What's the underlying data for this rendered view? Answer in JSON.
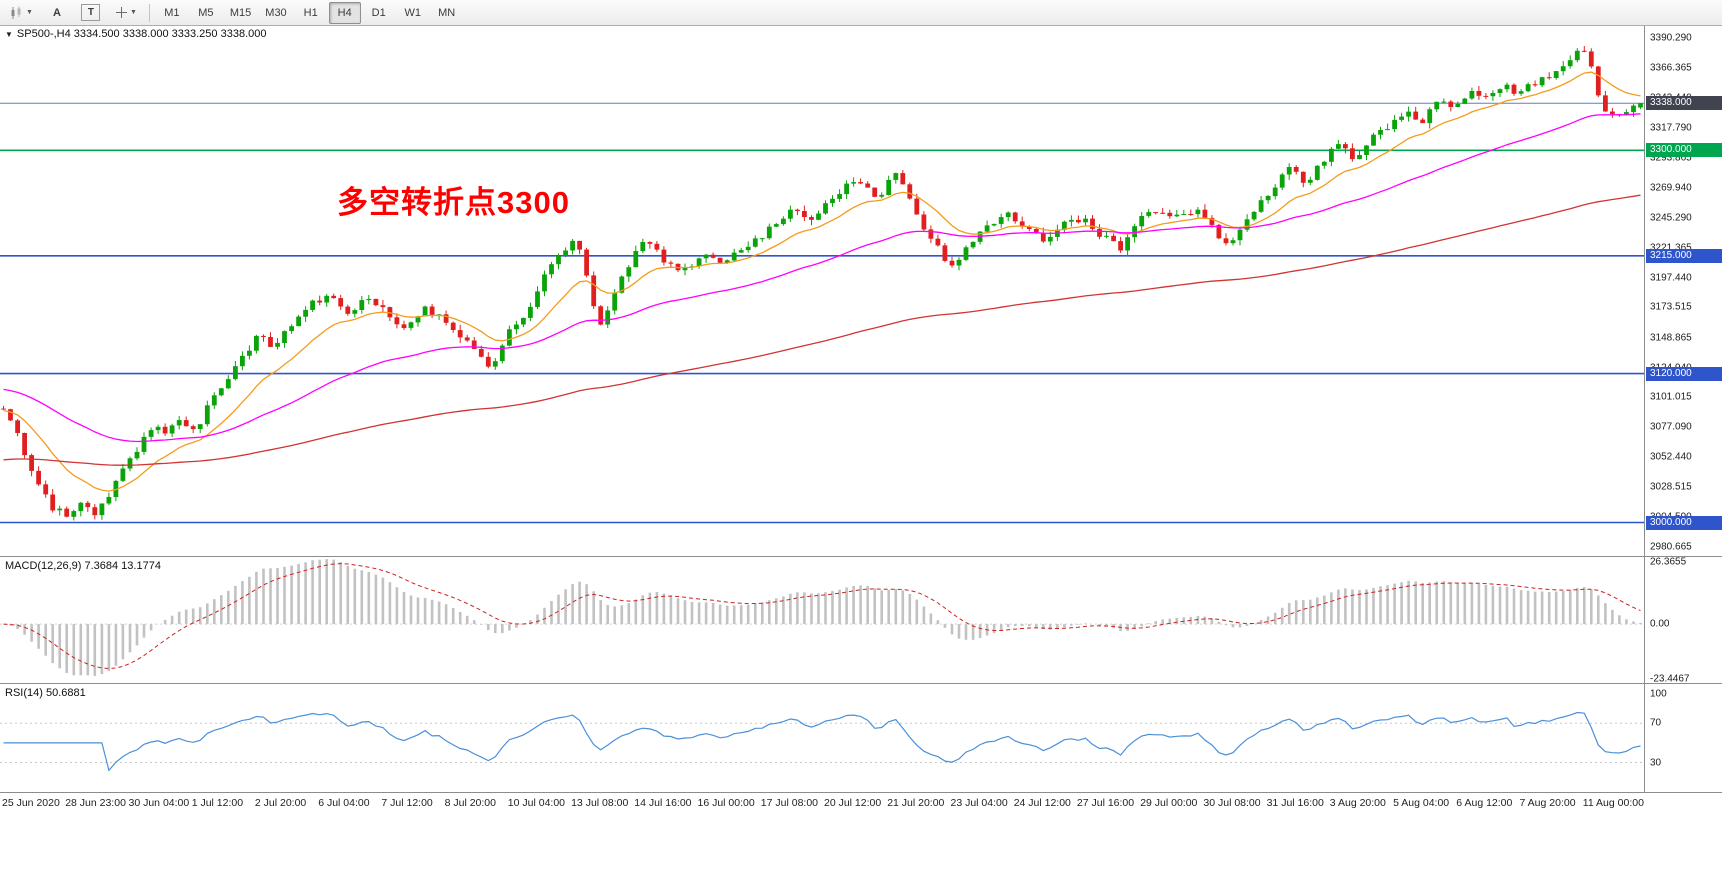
{
  "toolbar": {
    "chart_tool_letter_a": "A",
    "chart_tool_letter_t": "T",
    "timeframes": [
      "M1",
      "M5",
      "M15",
      "M30",
      "H1",
      "H4",
      "D1",
      "W1",
      "MN"
    ],
    "active_timeframe": "H4"
  },
  "chart": {
    "collapse_arrow": "▼",
    "header": "SP500-,H4  3334.500 3338.000 3333.250 3338.000",
    "annotation_text": "多空转折点3300",
    "annotation_color": "#ff0000",
    "price_range": [
      2973.0,
      3401.0
    ],
    "price_ticks": [
      "3390.290",
      "3366.365",
      "3342.440",
      "3317.790",
      "3293.865",
      "3269.940",
      "3245.290",
      "3221.365",
      "3197.440",
      "3173.515",
      "3148.865",
      "3124.940",
      "3101.015",
      "3077.090",
      "3052.440",
      "3028.515",
      "3004.590",
      "2980.665"
    ],
    "levels": [
      {
        "price": 3338.0,
        "label": "3338.000",
        "line_color": "#5b7fd0",
        "tag_bg": "#3f4450",
        "width": 1
      },
      {
        "price": 3300.0,
        "label": "3300.000",
        "line_color": "#00a64f",
        "tag_bg": "#00a64f",
        "width": 1.6
      },
      {
        "price": 3215.0,
        "label": "3215.000",
        "line_color": "#2f55cd",
        "tag_bg": "#2f55cd",
        "width": 1.6
      },
      {
        "price": 3120.0,
        "label": "3120.000",
        "line_color": "#2f55cd",
        "tag_bg": "#2f55cd",
        "width": 1.6
      },
      {
        "price": 3000.0,
        "label": "3000.000",
        "line_color": "#2f55cd",
        "tag_bg": "#2f55cd",
        "width": 1.6
      }
    ],
    "time_labels": [
      "25 Jun 2020",
      "28 Jun 23:00",
      "30 Jun 04:00",
      "1 Jul 12:00",
      "2 Jul 20:00",
      "6 Jul 04:00",
      "7 Jul 12:00",
      "8 Jul 20:00",
      "10 Jul 04:00",
      "13 Jul 08:00",
      "14 Jul 16:00",
      "16 Jul 00:00",
      "17 Jul 08:00",
      "20 Jul 12:00",
      "21 Jul 20:00",
      "23 Jul 04:00",
      "24 Jul 12:00",
      "27 Jul 16:00",
      "29 Jul 00:00",
      "30 Jul 08:00",
      "31 Jul 16:00",
      "3 Aug 20:00",
      "5 Aug 04:00",
      "6 Aug 12:00",
      "7 Aug 20:00",
      "11 Aug 00:00"
    ]
  },
  "macd": {
    "label": "MACD(12,26,9) 7.3684 13.1774",
    "axis_ticks": [
      "26.3655",
      "0.00",
      "-23.4467"
    ],
    "range": [
      -25.0,
      28.5
    ],
    "histogram_color": "#c2c2c2",
    "signal_color": "#cc2222"
  },
  "rsi": {
    "label": "RSI(14) 50.6881",
    "axis_ticks": [
      "100",
      "70",
      "30"
    ],
    "levels": [
      70,
      30
    ],
    "range": [
      0,
      110
    ],
    "line_color": "#4a90d9"
  },
  "chart_data": {
    "type": "candlestick",
    "symbol": "SP500-",
    "timeframe": "H4",
    "ohlc_current": {
      "open": 3334.5,
      "high": 3338.0,
      "low": 3333.25,
      "close": 3338.0
    },
    "bars": 234,
    "seed": 20200811,
    "volatility": 3.2,
    "wick": 4.5,
    "up_color": "#0aa30a",
    "down_color": "#e02020",
    "price_path": [
      [
        0.0,
        3092
      ],
      [
        0.006,
        3078
      ],
      [
        0.014,
        3054
      ],
      [
        0.022,
        3030
      ],
      [
        0.03,
        3012
      ],
      [
        0.04,
        3004
      ],
      [
        0.048,
        3018
      ],
      [
        0.056,
        3008
      ],
      [
        0.064,
        3022
      ],
      [
        0.074,
        3045
      ],
      [
        0.084,
        3062
      ],
      [
        0.092,
        3080
      ],
      [
        0.1,
        3070
      ],
      [
        0.108,
        3084
      ],
      [
        0.116,
        3072
      ],
      [
        0.126,
        3095
      ],
      [
        0.136,
        3112
      ],
      [
        0.148,
        3136
      ],
      [
        0.156,
        3152
      ],
      [
        0.164,
        3140
      ],
      [
        0.176,
        3158
      ],
      [
        0.19,
        3178
      ],
      [
        0.2,
        3184
      ],
      [
        0.21,
        3168
      ],
      [
        0.222,
        3180
      ],
      [
        0.234,
        3170
      ],
      [
        0.244,
        3158
      ],
      [
        0.256,
        3172
      ],
      [
        0.268,
        3166
      ],
      [
        0.28,
        3150
      ],
      [
        0.29,
        3134
      ],
      [
        0.298,
        3126
      ],
      [
        0.306,
        3148
      ],
      [
        0.318,
        3166
      ],
      [
        0.33,
        3196
      ],
      [
        0.342,
        3220
      ],
      [
        0.35,
        3234
      ],
      [
        0.358,
        3186
      ],
      [
        0.364,
        3158
      ],
      [
        0.372,
        3180
      ],
      [
        0.382,
        3208
      ],
      [
        0.392,
        3228
      ],
      [
        0.402,
        3214
      ],
      [
        0.414,
        3200
      ],
      [
        0.426,
        3216
      ],
      [
        0.438,
        3208
      ],
      [
        0.45,
        3220
      ],
      [
        0.462,
        3230
      ],
      [
        0.472,
        3240
      ],
      [
        0.482,
        3254
      ],
      [
        0.492,
        3242
      ],
      [
        0.504,
        3258
      ],
      [
        0.514,
        3270
      ],
      [
        0.524,
        3276
      ],
      [
        0.534,
        3258
      ],
      [
        0.544,
        3282
      ],
      [
        0.552,
        3268
      ],
      [
        0.56,
        3244
      ],
      [
        0.57,
        3222
      ],
      [
        0.58,
        3206
      ],
      [
        0.59,
        3226
      ],
      [
        0.602,
        3240
      ],
      [
        0.614,
        3248
      ],
      [
        0.626,
        3238
      ],
      [
        0.638,
        3226
      ],
      [
        0.65,
        3246
      ],
      [
        0.662,
        3242
      ],
      [
        0.672,
        3230
      ],
      [
        0.682,
        3220
      ],
      [
        0.692,
        3240
      ],
      [
        0.702,
        3252
      ],
      [
        0.714,
        3246
      ],
      [
        0.726,
        3252
      ],
      [
        0.738,
        3242
      ],
      [
        0.748,
        3220
      ],
      [
        0.756,
        3236
      ],
      [
        0.766,
        3254
      ],
      [
        0.776,
        3270
      ],
      [
        0.786,
        3288
      ],
      [
        0.796,
        3274
      ],
      [
        0.806,
        3292
      ],
      [
        0.816,
        3304
      ],
      [
        0.826,
        3292
      ],
      [
        0.836,
        3310
      ],
      [
        0.846,
        3320
      ],
      [
        0.856,
        3330
      ],
      [
        0.866,
        3322
      ],
      [
        0.876,
        3338
      ],
      [
        0.886,
        3334
      ],
      [
        0.896,
        3348
      ],
      [
        0.906,
        3342
      ],
      [
        0.916,
        3352
      ],
      [
        0.926,
        3346
      ],
      [
        0.936,
        3354
      ],
      [
        0.946,
        3362
      ],
      [
        0.956,
        3372
      ],
      [
        0.964,
        3384
      ],
      [
        0.97,
        3368
      ],
      [
        0.976,
        3336
      ],
      [
        0.984,
        3328
      ],
      [
        0.992,
        3334
      ],
      [
        1.0,
        3338
      ]
    ],
    "ma": [
      {
        "name": "ma-fast",
        "period": 13,
        "init": 3090,
        "color": "#f59b1d"
      },
      {
        "name": "ma-mid",
        "period": 48,
        "init": 3108,
        "color": "#ff00ff"
      },
      {
        "name": "ma-slow",
        "period": 160,
        "init": 3050,
        "color": "#d23333"
      }
    ]
  }
}
